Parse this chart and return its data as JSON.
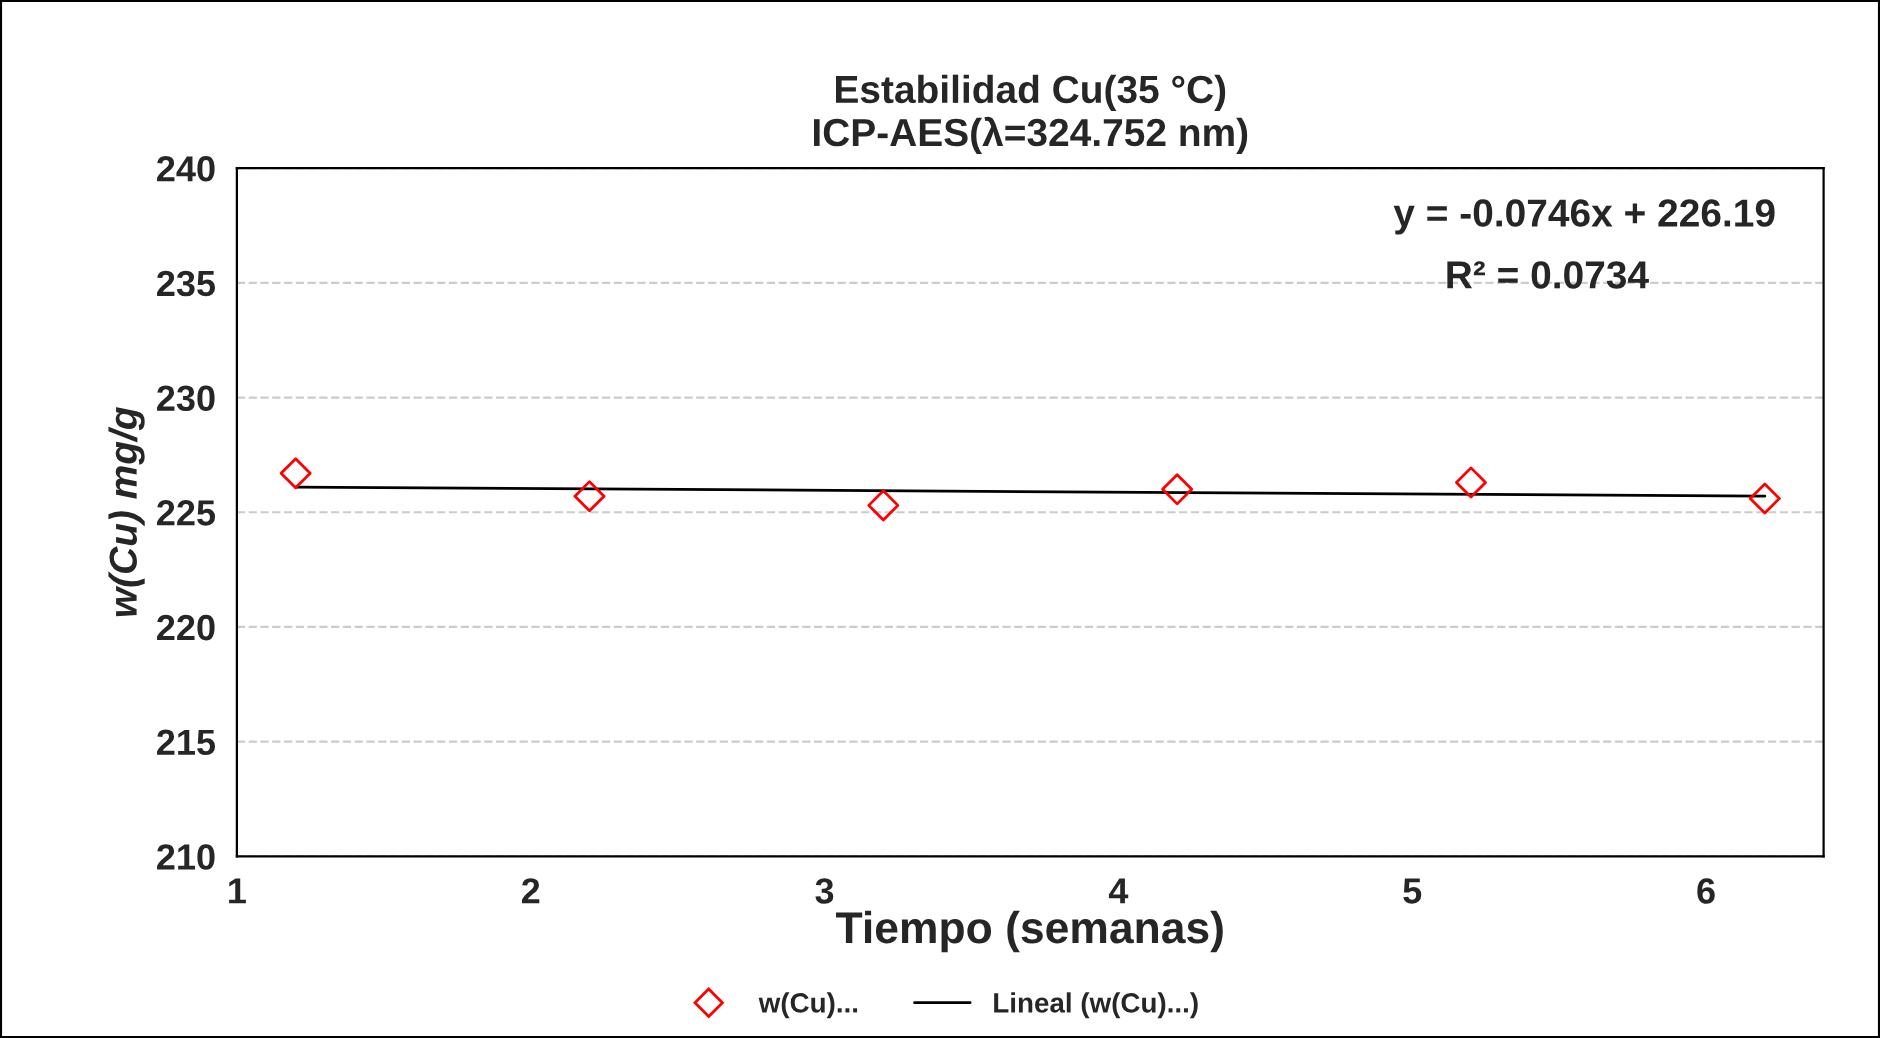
{
  "chart_data": {
    "type": "scatter",
    "title": "Estabilidad Cu(35 °C)\nICP-AES(λ=324.752 nm)",
    "xlabel": "Tiempo (semanas)",
    "ylabel": "w(Cu) mg/g",
    "series": [
      {
        "name": "w(Cu)...",
        "color": "#ff0000",
        "marker": "diamond",
        "x": [
          1.2,
          2.2,
          3.2,
          4.2,
          5.2,
          6.2
        ],
        "values": [
          226.7,
          225.7,
          225.3,
          226.0,
          226.3,
          225.6
        ]
      },
      {
        "name": "Lineal (w(Cu)...)",
        "type": "line",
        "color": "#000000",
        "line_style": "solid",
        "x": [
          1.2,
          6.2
        ],
        "values": [
          226.1,
          225.7
        ]
      }
    ],
    "annotations": [
      {
        "text": "y = -0.0746x + 226.19"
      },
      {
        "text": "R² = 0.0734"
      }
    ],
    "xlim": [
      1,
      6.4
    ],
    "xticks": [
      1,
      2,
      3,
      4,
      5,
      6
    ],
    "ylim": [
      210,
      240
    ],
    "yticks": [
      210,
      215,
      220,
      225,
      230,
      235,
      240
    ],
    "grid": "y",
    "legend": "bottom"
  }
}
